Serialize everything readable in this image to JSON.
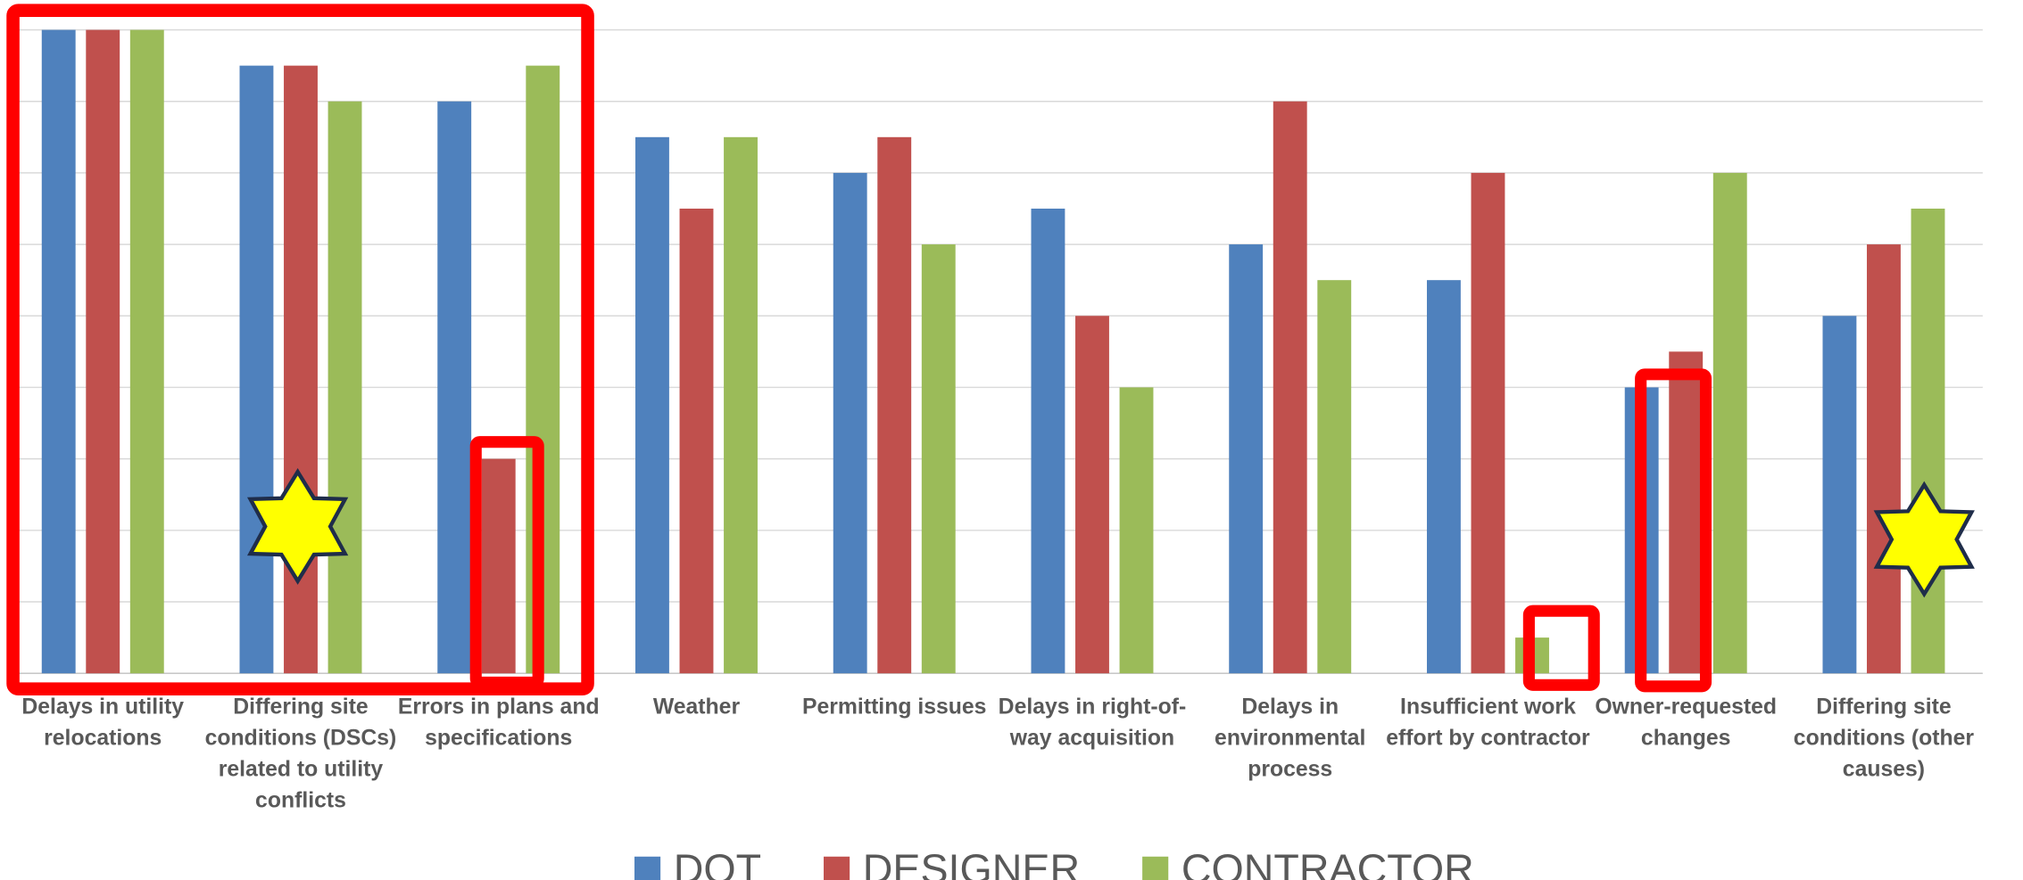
{
  "chart_data": {
    "type": "bar",
    "categories": [
      "Delays in utility relocations",
      "Differing site conditions (DSCs) related to utility conflicts",
      "Errors in plans and specifications",
      "Weather",
      "Permitting issues",
      "Delays in right-of-way acquisition",
      "Delays in environmental process",
      "Insufficient work effort by contractor",
      "Owner-requested changes",
      "Differing site conditions (other causes)"
    ],
    "series": [
      {
        "name": "DOT",
        "color": "#4f81bd",
        "values": [
          9,
          8.5,
          8,
          7.5,
          7,
          6.5,
          6,
          5.5,
          4,
          5
        ]
      },
      {
        "name": "DESIGNER",
        "color": "#c0504d",
        "values": [
          9,
          8.5,
          3,
          6.5,
          7.5,
          5,
          8,
          7,
          4.5,
          6
        ]
      },
      {
        "name": "CONTRACTOR",
        "color": "#9bbb59",
        "values": [
          9,
          8,
          8.5,
          7.5,
          6,
          4,
          5.5,
          0.5,
          7,
          6.5
        ]
      }
    ],
    "ylim": [
      0,
      9
    ],
    "yticks": [
      0,
      1,
      2,
      3,
      4,
      5,
      6,
      7,
      8,
      9
    ],
    "grid": true,
    "legend": "bottom"
  }
}
